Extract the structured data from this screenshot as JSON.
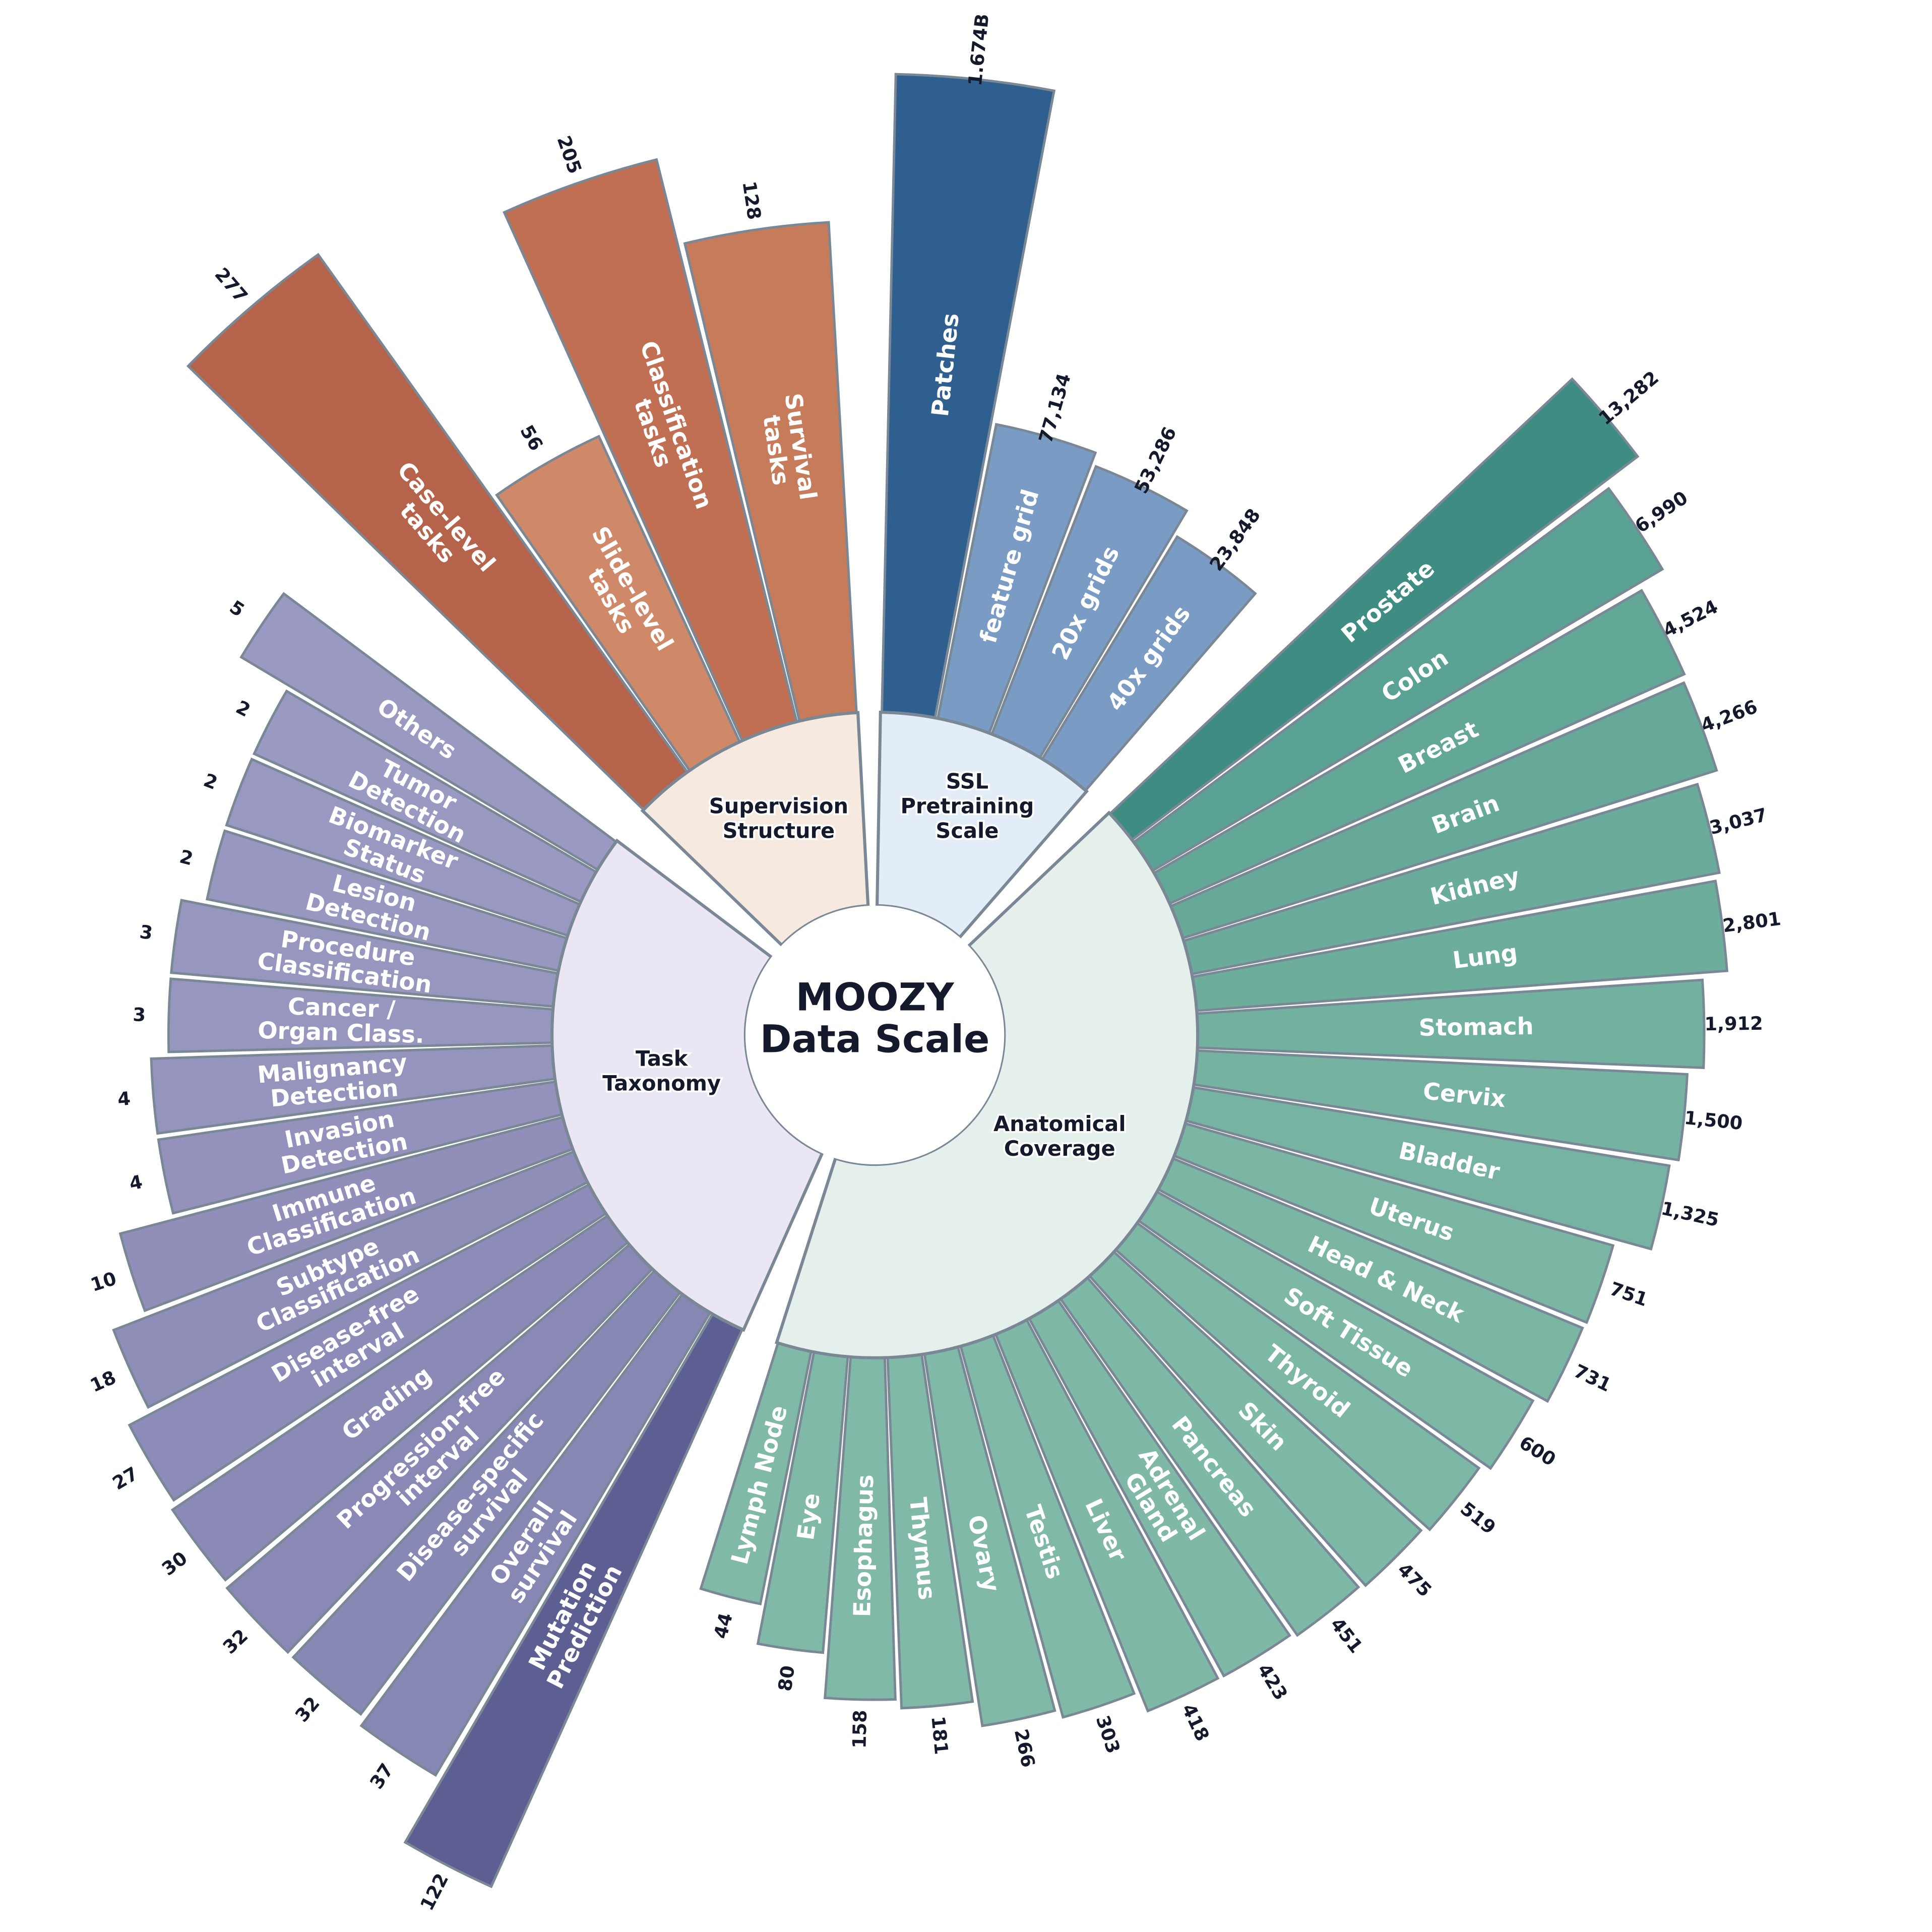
{
  "chart_data": {
    "type": "radial-bar",
    "title": "MOOZY Data Scale",
    "title_lines": [
      "MOOZY",
      "Data Scale"
    ],
    "stroke_color": "#7a8896",
    "groups": [
      {
        "name": "Supervision Structure",
        "name_lines": [
          "Supervision",
          "Structure"
        ],
        "ring_color": "#f6e9df",
        "items": [
          {
            "label": "Case-level\ntasks",
            "value": 277,
            "value_label": "277",
            "color": "#b5634b"
          },
          {
            "label": "Slide-level\ntasks",
            "value": 56,
            "value_label": "56",
            "color": "#d08968"
          },
          {
            "label": "Classification\ntasks",
            "value": 205,
            "value_label": "205",
            "color": "#c06f53"
          },
          {
            "label": "Survival\ntasks",
            "value": 128,
            "value_label": "128",
            "color": "#c67b5b"
          }
        ]
      },
      {
        "name": "SSL Pretraining Scale",
        "name_lines": [
          "SSL",
          "Pretraining",
          "Scale"
        ],
        "ring_color": "#e3edf7",
        "items": [
          {
            "label": "Patches",
            "value": 1674000000,
            "value_label": "1.674B",
            "color": "#2f5f8f"
          },
          {
            "label": "feature grid",
            "value": 77134,
            "value_label": "77,134",
            "color": "#7a9cc4"
          },
          {
            "label": "20x grids",
            "value": 53286,
            "value_label": "53,286",
            "color": "#7a9cc4"
          },
          {
            "label": "40x grids",
            "value": 23848,
            "value_label": "23,848",
            "color": "#7a9cc4"
          }
        ]
      },
      {
        "name": "Anatomical Coverage",
        "name_lines": [
          "Anatomical",
          "Coverage"
        ],
        "ring_color": "#e5f0ec",
        "items": [
          {
            "label": "Prostate",
            "value": 13282,
            "value_label": "13,282",
            "color": "#3e8c82"
          },
          {
            "label": "Colon",
            "value": 6990,
            "value_label": "6,990",
            "color": "#5aa294"
          },
          {
            "label": "Breast",
            "value": 4524,
            "value_label": "4,524",
            "color": "#63a797"
          },
          {
            "label": "Brain",
            "value": 4266,
            "value_label": "4,266",
            "color": "#66a998"
          },
          {
            "label": "Kidney",
            "value": 3037,
            "value_label": "3,037",
            "color": "#6aab9b"
          },
          {
            "label": "Lung",
            "value": 2801,
            "value_label": "2,801",
            "color": "#6dad9c"
          },
          {
            "label": "Stomach",
            "value": 1912,
            "value_label": "1,912",
            "color": "#72b09f"
          },
          {
            "label": "Cervix",
            "value": 1500,
            "value_label": "1,500",
            "color": "#75b2a1"
          },
          {
            "label": "Bladder",
            "value": 1325,
            "value_label": "1,325",
            "color": "#77b3a2"
          },
          {
            "label": "Uterus",
            "value": 751,
            "value_label": "751",
            "color": "#7bb5a4"
          },
          {
            "label": "Head & Neck",
            "value": 731,
            "value_label": "731",
            "color": "#7bb5a4"
          },
          {
            "label": "Soft Tissue",
            "value": 600,
            "value_label": "600",
            "color": "#7db7a6"
          },
          {
            "label": "Thyroid",
            "value": 519,
            "value_label": "519",
            "color": "#7db7a6"
          },
          {
            "label": "Skin",
            "value": 475,
            "value_label": "475",
            "color": "#7eb8a7"
          },
          {
            "label": "Pancreas",
            "value": 451,
            "value_label": "451",
            "color": "#7eb8a7"
          },
          {
            "label": "Adrenal\nGland",
            "value": 423,
            "value_label": "423",
            "color": "#7fb8a7"
          },
          {
            "label": "Liver",
            "value": 418,
            "value_label": "418",
            "color": "#7fb8a7"
          },
          {
            "label": "Testis",
            "value": 303,
            "value_label": "303",
            "color": "#80b9a8"
          },
          {
            "label": "Ovary",
            "value": 266,
            "value_label": "266",
            "color": "#80b9a8"
          },
          {
            "label": "Thymus",
            "value": 181,
            "value_label": "181",
            "color": "#80b9a8"
          },
          {
            "label": "Esophagus",
            "value": 158,
            "value_label": "158",
            "color": "#80b9a8"
          },
          {
            "label": "Eye",
            "value": 80,
            "value_label": "80",
            "color": "#80b9a8"
          },
          {
            "label": "Lymph Node",
            "value": 44,
            "value_label": "44",
            "color": "#80b9a8"
          }
        ]
      },
      {
        "name": "Task Taxonomy",
        "name_lines": [
          "Task",
          "Taxonomy"
        ],
        "ring_color": "#ebe6f4",
        "items": [
          {
            "label": "Mutation\nPrediction",
            "value": 122,
            "value_label": "122",
            "color": "#5d5f93"
          },
          {
            "label": "Overall\nsurvival",
            "value": 37,
            "value_label": "37",
            "color": "#8787b4"
          },
          {
            "label": "Disease-specific\nsurvival",
            "value": 32,
            "value_label": "32",
            "color": "#8888b5"
          },
          {
            "label": "Progression-free\ninterval",
            "value": 32,
            "value_label": "32",
            "color": "#8a89b6"
          },
          {
            "label": "Grading",
            "value": 30,
            "value_label": "30",
            "color": "#8b8ab7"
          },
          {
            "label": "Disease-free\ninterval",
            "value": 27,
            "value_label": "27",
            "color": "#8d8cb8"
          },
          {
            "label": "Subtype\nClassification",
            "value": 18,
            "value_label": "18",
            "color": "#8f8eb9"
          },
          {
            "label": "Immune\nClassification",
            "value": 10,
            "value_label": "10",
            "color": "#918fba"
          },
          {
            "label": "Invasion\nDetection",
            "value": 4,
            "value_label": "4",
            "color": "#9492bc"
          },
          {
            "label": "Malignancy\nDetection",
            "value": 4,
            "value_label": "4",
            "color": "#9594bd"
          },
          {
            "label": "Cancer /\nOrgan Class.",
            "value": 3,
            "value_label": "3",
            "color": "#9796be"
          },
          {
            "label": "Procedure\nClassification",
            "value": 3,
            "value_label": "3",
            "color": "#9796bf"
          },
          {
            "label": "Lesion\nDetection",
            "value": 2,
            "value_label": "2",
            "color": "#9897c0"
          },
          {
            "label": "Biomarker\nStatus",
            "value": 2,
            "value_label": "2",
            "color": "#9998c1"
          },
          {
            "label": "Tumor\nDetection",
            "value": 2,
            "value_label": "2",
            "color": "#9a99c2"
          },
          {
            "label": "Others",
            "value": 5,
            "value_label": "5",
            "color": "#9a99c2"
          }
        ]
      }
    ]
  }
}
